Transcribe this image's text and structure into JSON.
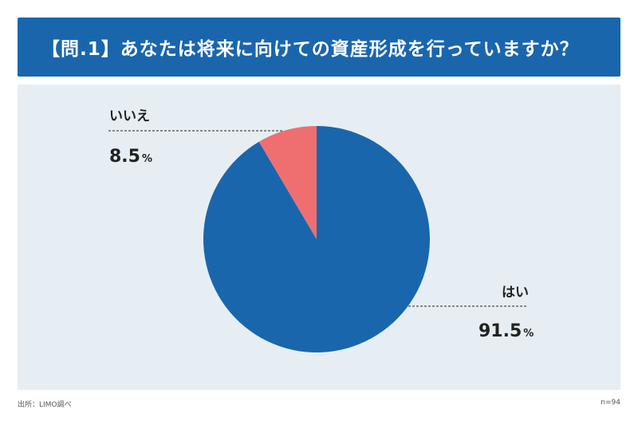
{
  "header": {
    "title": "【問.1】あなたは将来に向けての資産形成を行っていますか？"
  },
  "chart_data": {
    "type": "pie",
    "slices": [
      {
        "label": "はい",
        "value": 91.5,
        "display": "91.5",
        "unit": "%",
        "color": "#1a66ad"
      },
      {
        "label": "いいえ",
        "value": 8.5,
        "display": "8.5",
        "unit": "%",
        "color": "#ef6f70"
      }
    ]
  },
  "footer": {
    "source": "出所：LIMO調べ",
    "sample": "n=94"
  }
}
